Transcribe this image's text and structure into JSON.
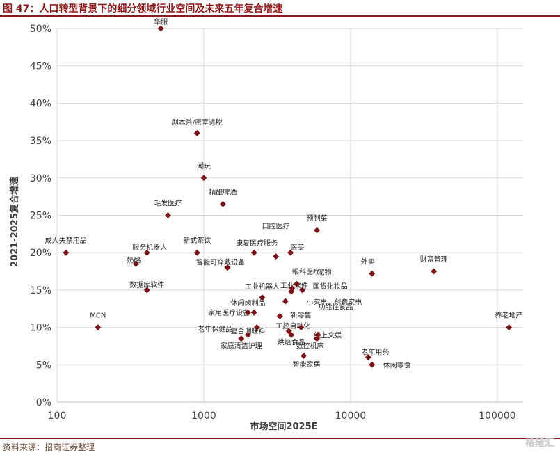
{
  "figure": {
    "title": "图 47：人口转型背景下的细分领域行业空间及未来五年复合增速",
    "source": "资料来源：招商证券整理",
    "watermark": "格隆汇"
  },
  "colors": {
    "marker": "#7b1416",
    "title": "#8b1a1a",
    "grid": "#d9d9d9"
  },
  "chart_data": {
    "type": "scatter",
    "xlabel": "市场空间2025E",
    "ylabel": "2021-2025复合增速",
    "xscale": "log",
    "xlim": [
      100,
      150000
    ],
    "ylim": [
      0,
      0.5
    ],
    "xticks": [
      {
        "value": 100,
        "label": "100"
      },
      {
        "value": 1000,
        "label": "1000"
      },
      {
        "value": 10000,
        "label": "10000"
      },
      {
        "value": 100000,
        "label": "100000"
      }
    ],
    "yticks": [
      {
        "value": 0,
        "label": "0%"
      },
      {
        "value": 0.05,
        "label": "5%"
      },
      {
        "value": 0.1,
        "label": "10%"
      },
      {
        "value": 0.15,
        "label": "15%"
      },
      {
        "value": 0.2,
        "label": "20%"
      },
      {
        "value": 0.25,
        "label": "25%"
      },
      {
        "value": 0.3,
        "label": "30%"
      },
      {
        "value": 0.35,
        "label": "35%"
      },
      {
        "value": 0.4,
        "label": "40%"
      },
      {
        "value": 0.45,
        "label": "45%"
      },
      {
        "value": 0.5,
        "label": "50%"
      }
    ],
    "grid": true,
    "legend": "none",
    "points": [
      {
        "label": "华服",
        "x": 510,
        "y": 0.5
      },
      {
        "label": "剧本杀/密室逃脱",
        "x": 900,
        "y": 0.36
      },
      {
        "label": "潮玩",
        "x": 1000,
        "y": 0.3
      },
      {
        "label": "精酿啤酒",
        "x": 1350,
        "y": 0.265
      },
      {
        "label": "毛发医疗",
        "x": 570,
        "y": 0.25
      },
      {
        "label": "预制菜",
        "x": 5900,
        "y": 0.23
      },
      {
        "label": "口腔医疗",
        "x": 3100,
        "y": 0.195
      },
      {
        "label": "成人失禁用品",
        "x": 115,
        "y": 0.2
      },
      {
        "label": "服务机器人",
        "x": 410,
        "y": 0.2
      },
      {
        "label": "新式茶饮",
        "x": 900,
        "y": 0.2
      },
      {
        "label": "康复医疗服务",
        "x": 2200,
        "y": 0.2
      },
      {
        "label": "医美",
        "x": 3900,
        "y": 0.2
      },
      {
        "label": "奶酪",
        "x": 345,
        "y": 0.185
      },
      {
        "label": "智能可穿戴设备",
        "x": 1450,
        "y": 0.18
      },
      {
        "label": "眼科医疗",
        "x": 4000,
        "y": 0.152
      },
      {
        "label": "外卖",
        "x": 14000,
        "y": 0.172
      },
      {
        "label": "财富管理",
        "x": 37000,
        "y": 0.175
      },
      {
        "label": "数据库软件",
        "x": 410,
        "y": 0.15
      },
      {
        "label": "工业机器人",
        "x": 2500,
        "y": 0.14
      },
      {
        "label": "工业软件",
        "x": 3950,
        "y": 0.148
      },
      {
        "label": "宠物",
        "x": 4300,
        "y": 0.158
      },
      {
        "label": "国货化妆品",
        "x": 4700,
        "y": 0.15
      },
      {
        "label": "家用医疗设备",
        "x": 2200,
        "y": 0.12
      },
      {
        "label": "小家电、创意家电",
        "x": 3600,
        "y": 0.135
      },
      {
        "label": "休闲卤制品",
        "x": 2000,
        "y": 0.12
      },
      {
        "label": "功能性食品",
        "x": 3300,
        "y": 0.115
      },
      {
        "label": "新零售",
        "x": 4600,
        "y": 0.1
      },
      {
        "label": "MCN",
        "x": 190,
        "y": 0.1
      },
      {
        "label": "老年保健品",
        "x": 2300,
        "y": 0.1
      },
      {
        "label": "复合调味料",
        "x": 2000,
        "y": 0.09
      },
      {
        "label": "工控自动化",
        "x": 3800,
        "y": 0.095
      },
      {
        "label": "烘焙食品",
        "x": 3950,
        "y": 0.09
      },
      {
        "label": "数控机床",
        "x": 5900,
        "y": 0.085
      },
      {
        "label": "线上文娱",
        "x": 6000,
        "y": 0.09
      },
      {
        "label": "家庭清洁护理",
        "x": 1800,
        "y": 0.085
      },
      {
        "label": "养老地产",
        "x": 120000,
        "y": 0.1
      },
      {
        "label": "老年用药",
        "x": 13200,
        "y": 0.06
      },
      {
        "label": "休闲零食",
        "x": 14000,
        "y": 0.05
      },
      {
        "label": "智能家居",
        "x": 4800,
        "y": 0.062
      }
    ]
  }
}
